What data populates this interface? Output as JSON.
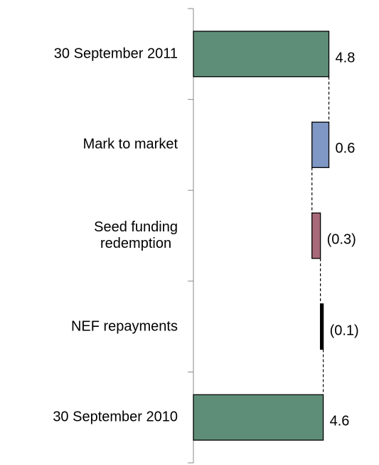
{
  "chart_data": {
    "type": "waterfall",
    "orientation": "horizontal",
    "categories": [
      "30 September 2011",
      "Mark to market",
      "Seed funding\nredemption",
      "NEF repayments",
      "30 September 2010"
    ],
    "values": [
      4.8,
      0.6,
      -0.3,
      -0.1,
      4.6
    ],
    "value_labels": [
      "4.8",
      "0.6",
      "(0.3)",
      "(0.1)",
      "4.6"
    ],
    "colors": [
      "#5f8e78",
      "#7f97c4",
      "#a86a7a",
      "#000000",
      "#5f8e78"
    ],
    "xlim": [
      0,
      6.5
    ]
  }
}
